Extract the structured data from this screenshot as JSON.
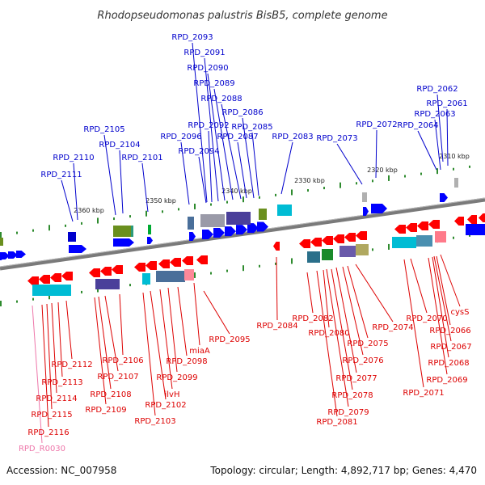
{
  "title": "Rhodopseudomonas palustris BisB5, complete genome",
  "footer": {
    "accession": "Accession: NC_007958",
    "summary": "Topology: circular; Length: 4,892,717 bp; Genes: 4,470"
  },
  "colors": {
    "forward_label": "#0000cc",
    "reverse_label": "#dd0000",
    "rna_label": "#ee77aa",
    "backbone": "#7a7a7a",
    "tick_mark": "#2e8b2e"
  },
  "scale_ticks": [
    "2310 kbp",
    "2320 kbp",
    "2330 kbp",
    "2340 kbp",
    "2350 kbp",
    "2360 kbp"
  ],
  "forward_genes": [
    "RPD_2062",
    "RPD_2061",
    "RPD_2063",
    "RPD_2064",
    "RPD_2072",
    "RPD_2073",
    "RPD_2083",
    "RPD_2085",
    "RPD_2086",
    "RPD_2087",
    "RPD_2088",
    "RPD_2089",
    "RPD_2090",
    "RPD_2091",
    "RPD_2092",
    "RPD_2093",
    "RPD_2094",
    "RPD_2096",
    "RPD_2101",
    "RPD_2104",
    "RPD_2105",
    "RPD_2110",
    "RPD_2111"
  ],
  "reverse_genes": [
    "cysS",
    "RPD_2066",
    "RPD_2067",
    "RPD_2068",
    "RPD_2069",
    "RPD_2070",
    "RPD_2071",
    "RPD_2074",
    "RPD_2075",
    "RPD_2076",
    "RPD_2077",
    "RPD_2078",
    "RPD_2079",
    "RPD_2080",
    "RPD_2081",
    "RPD_2082",
    "RPD_2084",
    "RPD_2095",
    "miaA",
    "RPD_2098",
    "RPD_2099",
    "ilvH",
    "RPD_2102",
    "RPD_2103",
    "RPD_2106",
    "RPD_2107",
    "RPD_2108",
    "RPD_2109",
    "RPD_2112",
    "RPD_2113",
    "RPD_2114",
    "RPD_2115",
    "RPD_2116"
  ],
  "rna_genes": [
    "RPD_R0030"
  ]
}
